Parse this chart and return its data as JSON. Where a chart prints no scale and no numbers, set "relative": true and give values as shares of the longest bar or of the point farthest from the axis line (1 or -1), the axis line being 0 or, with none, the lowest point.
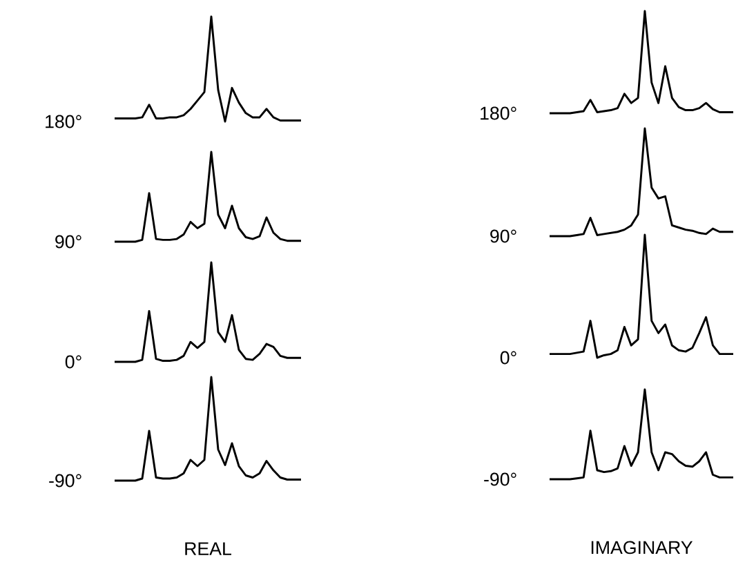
{
  "chart_data": [
    {
      "type": "line",
      "relative": true,
      "categories": [
        null,
        null,
        null,
        null,
        null,
        null,
        null,
        null,
        null,
        null,
        null,
        null,
        null,
        null,
        null,
        null,
        null,
        null,
        null,
        null,
        null,
        null,
        null,
        null,
        null,
        null,
        null,
        null
      ],
      "series": [
        {
          "name": "180°",
          "color": "#000000",
          "values": [
            0.03,
            0.03,
            0.03,
            0.03,
            0.04,
            0.16,
            0.03,
            0.03,
            0.04,
            0.04,
            0.06,
            0.12,
            0.2,
            0.28,
            1.0,
            0.3,
            0,
            0.32,
            0.18,
            0.08,
            0.04,
            0.04,
            0.12,
            0.04,
            0.01,
            0.01,
            0.01,
            0.01
          ]
        }
      ]
    },
    {
      "type": "line",
      "relative": true,
      "categories": [
        null,
        null,
        null,
        null,
        null,
        null,
        null,
        null,
        null,
        null,
        null,
        null,
        null,
        null,
        null,
        null,
        null,
        null,
        null,
        null,
        null,
        null,
        null,
        null,
        null,
        null,
        null,
        null
      ],
      "series": [
        {
          "name": "180°",
          "color": "#000000",
          "values": [
            0,
            0,
            0,
            0,
            0.01,
            0.02,
            0.13,
            0.01,
            0.02,
            0.03,
            0.05,
            0.19,
            0.1,
            0.15,
            1.0,
            0.3,
            0.1,
            0.46,
            0.15,
            0.06,
            0.03,
            0.03,
            0.05,
            0.1,
            0.04,
            0.01,
            0.01,
            0.01
          ]
        }
      ]
    },
    {
      "type": "line",
      "relative": true,
      "categories": [
        null,
        null,
        null,
        null,
        null,
        null,
        null,
        null,
        null,
        null,
        null,
        null,
        null,
        null,
        null,
        null,
        null,
        null,
        null,
        null,
        null,
        null,
        null,
        null,
        null,
        null,
        null,
        null
      ],
      "series": [
        {
          "name": "90°",
          "color": "#000000",
          "values": [
            0,
            0,
            0,
            0,
            0.02,
            0.54,
            0.03,
            0.02,
            0.02,
            0.03,
            0.08,
            0.22,
            0.15,
            0.2,
            1.0,
            0.3,
            0.15,
            0.4,
            0.15,
            0.05,
            0.03,
            0.06,
            0.27,
            0.1,
            0.03,
            0.01,
            0.01,
            0.01
          ]
        }
      ]
    },
    {
      "type": "line",
      "relative": true,
      "categories": [
        null,
        null,
        null,
        null,
        null,
        null,
        null,
        null,
        null,
        null,
        null,
        null,
        null,
        null,
        null,
        null,
        null,
        null,
        null,
        null,
        null,
        null,
        null,
        null,
        null,
        null,
        null,
        null
      ],
      "series": [
        {
          "name": "90°",
          "color": "#000000",
          "values": [
            0,
            0,
            0,
            0,
            0.01,
            0.02,
            0.17,
            0.01,
            0.02,
            0.03,
            0.04,
            0.06,
            0.1,
            0.2,
            1.0,
            0.45,
            0.35,
            0.37,
            0.1,
            0.08,
            0.06,
            0.05,
            0.03,
            0.02,
            0.07,
            0.04,
            0.04,
            0.04
          ]
        }
      ]
    },
    {
      "type": "line",
      "relative": true,
      "categories": [
        null,
        null,
        null,
        null,
        null,
        null,
        null,
        null,
        null,
        null,
        null,
        null,
        null,
        null,
        null,
        null,
        null,
        null,
        null,
        null,
        null,
        null,
        null,
        null,
        null,
        null,
        null,
        null
      ],
      "series": [
        {
          "name": "0°",
          "color": "#000000",
          "values": [
            0,
            0,
            0,
            0,
            0.02,
            0.51,
            0.03,
            0.01,
            0.01,
            0.02,
            0.06,
            0.2,
            0.14,
            0.2,
            1.0,
            0.3,
            0.2,
            0.47,
            0.12,
            0.03,
            0.02,
            0.08,
            0.18,
            0.15,
            0.06,
            0.04,
            0.04,
            0.04
          ]
        }
      ]
    },
    {
      "type": "line",
      "relative": true,
      "categories": [
        null,
        null,
        null,
        null,
        null,
        null,
        null,
        null,
        null,
        null,
        null,
        null,
        null,
        null,
        null,
        null,
        null,
        null,
        null,
        null,
        null,
        null,
        null,
        null,
        null,
        null,
        null,
        null
      ],
      "series": [
        {
          "name": "0°",
          "color": "#000000",
          "values": [
            0.03,
            0.03,
            0.03,
            0.03,
            0.04,
            0.05,
            0.3,
            0,
            0.02,
            0.03,
            0.06,
            0.25,
            0.1,
            0.15,
            1.0,
            0.3,
            0.2,
            0.27,
            0.1,
            0.06,
            0.05,
            0.08,
            0.2,
            0.33,
            0.1,
            0.03,
            0.03,
            0.03
          ]
        }
      ]
    },
    {
      "type": "line",
      "relative": true,
      "xlabel": "REAL",
      "categories": [
        null,
        null,
        null,
        null,
        null,
        null,
        null,
        null,
        null,
        null,
        null,
        null,
        null,
        null,
        null,
        null,
        null,
        null,
        null,
        null,
        null,
        null,
        null,
        null,
        null,
        null,
        null,
        null
      ],
      "series": [
        {
          "name": "-90°",
          "color": "#000000",
          "values": [
            0,
            0,
            0,
            0,
            0.02,
            0.48,
            0.03,
            0.02,
            0.02,
            0.03,
            0.07,
            0.2,
            0.14,
            0.2,
            1.0,
            0.3,
            0.15,
            0.36,
            0.14,
            0.05,
            0.03,
            0.07,
            0.19,
            0.1,
            0.03,
            0.01,
            0.01,
            0.01
          ]
        }
      ]
    },
    {
      "type": "line",
      "relative": true,
      "xlabel": "IMAGINARY",
      "categories": [
        null,
        null,
        null,
        null,
        null,
        null,
        null,
        null,
        null,
        null,
        null,
        null,
        null,
        null,
        null,
        null,
        null,
        null,
        null,
        null,
        null,
        null,
        null,
        null,
        null,
        null,
        null,
        null
      ],
      "series": [
        {
          "name": "-90°",
          "color": "#000000",
          "values": [
            0,
            0,
            0,
            0,
            0.01,
            0.02,
            0.54,
            0.1,
            0.08,
            0.09,
            0.12,
            0.37,
            0.15,
            0.3,
            1.0,
            0.3,
            0.1,
            0.3,
            0.28,
            0.2,
            0.15,
            0.14,
            0.2,
            0.3,
            0.05,
            0.02,
            0.02,
            0.02
          ]
        }
      ]
    }
  ]
}
